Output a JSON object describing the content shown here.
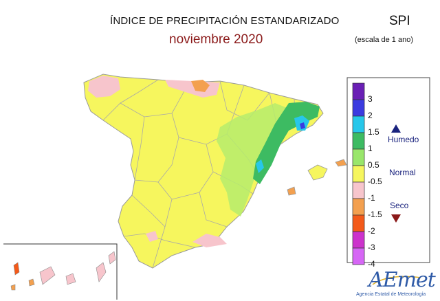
{
  "header": {
    "title": "ÍNDICE DE PRECIPITACIÓN ESTANDARIZADO",
    "subtitle": "noviembre 2020",
    "index_name": "SPI",
    "scale_note": "(escala de 1 ano)"
  },
  "legend": {
    "ticks": [
      "3",
      "2",
      "1.5",
      "1",
      "0.5",
      "-0.5",
      "-1",
      "-1.5",
      "-2",
      "-3",
      "-4"
    ],
    "labels": {
      "humid": "Humedo",
      "normal": "Normal",
      "dry": "Seco"
    },
    "class_colors": [
      "#6a1fb5",
      "#3b3be0",
      "#27c7ea",
      "#3dbb62",
      "#99e66b",
      "#f6f65e",
      "#f7c5cc",
      "#f3a04f",
      "#f35a1a",
      "#cc33cc",
      "#d666f5"
    ],
    "arrow_colors": {
      "up": "#1a237e",
      "down": "#8b1a1a"
    }
  },
  "map": {
    "region": "Spain",
    "predominant_class_color": "#f6f65e"
  },
  "logo": {
    "text": "AEmet",
    "sub": "Agencia Estatal de Meteorología"
  }
}
